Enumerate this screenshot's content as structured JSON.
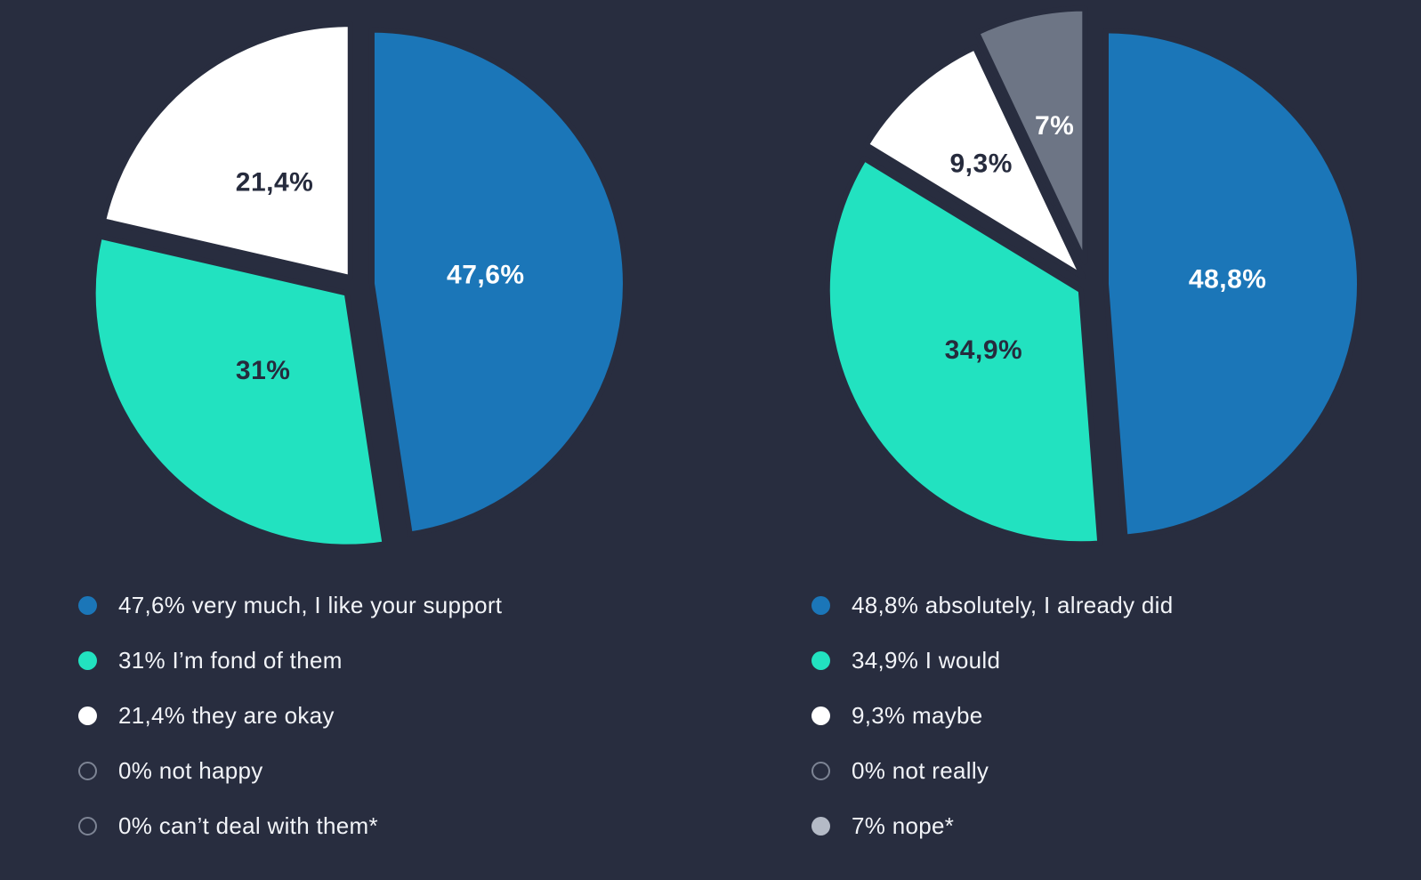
{
  "page": {
    "background": "#282d3f"
  },
  "colors": {
    "bg": "#282d3f",
    "blue": "#1b76b8",
    "teal": "#22e2c0",
    "white": "#ffffff",
    "gray": "#6d7585",
    "dark_label": "#262b3d",
    "legend_text": "#f2f4f8",
    "outline_dot": "#7d8494",
    "gray_dot": "#b4bac6"
  },
  "chart_data": [
    {
      "type": "pie",
      "title": "",
      "slices": [
        {
          "label": "47,6%",
          "value": 47.6,
          "color": "#1b76b8",
          "label_color": "#ffffff",
          "explode": 18,
          "label_r": 0.45
        },
        {
          "label": "31%",
          "value": 31,
          "color": "#22e2c0",
          "label_color": "#262b3d",
          "explode": 14,
          "label_r": 0.45
        },
        {
          "label": "21,4%",
          "value": 21.4,
          "color": "#ffffff",
          "label_color": "#262b3d",
          "explode": 10,
          "label_r": 0.48
        }
      ],
      "legend": [
        {
          "text": "47,6% very much, I like your support",
          "dot": "filled",
          "color": "#1b76b8"
        },
        {
          "text": "31% I’m fond of them",
          "dot": "filled",
          "color": "#22e2c0"
        },
        {
          "text": "21,4% they are okay",
          "dot": "filled",
          "color": "#ffffff"
        },
        {
          "text": "0% not happy",
          "dot": "outline",
          "color": "#7d8494"
        },
        {
          "text": "0% can’t deal with them*",
          "dot": "outline",
          "color": "#7d8494"
        }
      ]
    },
    {
      "type": "pie",
      "title": "",
      "slices": [
        {
          "label": "48,8%",
          "value": 48.8,
          "color": "#1b76b8",
          "label_color": "#ffffff",
          "explode": 18,
          "label_r": 0.48
        },
        {
          "label": "34,9%",
          "value": 34.9,
          "color": "#22e2c0",
          "label_color": "#262b3d",
          "explode": 12,
          "label_r": 0.45
        },
        {
          "label": "9,3%",
          "value": 9.3,
          "color": "#ffffff",
          "label_color": "#262b3d",
          "explode": 12,
          "label_r": 0.6
        },
        {
          "label": "7%",
          "value": 7,
          "color": "#6d7585",
          "label_color": "#ffffff",
          "explode": 26,
          "label_r": 0.55
        }
      ],
      "legend": [
        {
          "text": "48,8% absolutely, I already did",
          "dot": "filled",
          "color": "#1b76b8"
        },
        {
          "text": "34,9% I would",
          "dot": "filled",
          "color": "#22e2c0"
        },
        {
          "text": "9,3% maybe",
          "dot": "filled",
          "color": "#ffffff"
        },
        {
          "text": "0% not really",
          "dot": "outline",
          "color": "#7d8494"
        },
        {
          "text": "7% nope*",
          "dot": "filled",
          "color": "#b4bac6"
        }
      ]
    }
  ]
}
